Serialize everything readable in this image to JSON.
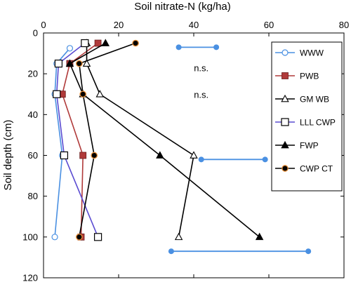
{
  "chart_data": {
    "type": "line",
    "orientation": "depth-profile",
    "xlabel": "Soil nitrate-N (kg/ha)",
    "ylabel": "Soil depth (cm)",
    "xlim": [
      0,
      80
    ],
    "ylim": [
      0,
      120
    ],
    "x_axis_position": "top",
    "y_axis_inverted": true,
    "x_ticks": [
      0,
      20,
      40,
      60,
      80
    ],
    "y_ticks": [
      0,
      20,
      40,
      60,
      80,
      100,
      120
    ],
    "grid": false,
    "legend_position": "top-right",
    "series": [
      {
        "name": "WWW",
        "color": "#4a90e2",
        "marker": "open-circle",
        "x": [
          7,
          3.5,
          3,
          5,
          3
        ],
        "depth": [
          7.5,
          15,
          30,
          60,
          100
        ]
      },
      {
        "name": "PWB",
        "color": "#b03a3a",
        "marker": "filled-square",
        "x": [
          14.5,
          7,
          5,
          10.5,
          10
        ],
        "depth": [
          5,
          15,
          30,
          60,
          100
        ]
      },
      {
        "name": "GM WB",
        "color": "#000000",
        "marker": "open-triangle",
        "x": [
          11.5,
          11.5,
          15,
          40,
          36
        ],
        "depth": [
          5,
          15,
          30,
          60,
          100
        ]
      },
      {
        "name": "LLL CWP",
        "color": "#5a4bd1",
        "marker": "open-square",
        "x": [
          11,
          4,
          3.5,
          5.5,
          14.5
        ],
        "depth": [
          5,
          15,
          30,
          60,
          100
        ]
      },
      {
        "name": "FWP",
        "color": "#000000",
        "marker": "filled-triangle",
        "x": [
          16.5,
          7,
          10.5,
          31,
          57.5
        ],
        "depth": [
          5,
          15,
          30,
          60,
          100
        ]
      },
      {
        "name": "CWP CT",
        "color": "#000000",
        "marker": "filled-circle-orange",
        "x": [
          24.5,
          9.5,
          10.5,
          13.5,
          9.5
        ],
        "depth": [
          5,
          15,
          30,
          60,
          100
        ]
      }
    ],
    "error_bars": [
      {
        "x1": 36,
        "x2": 46,
        "depth": 7
      },
      {
        "x1": 42,
        "x2": 59,
        "depth": 62
      },
      {
        "x1": 34,
        "x2": 70.5,
        "depth": 107
      }
    ],
    "annotations": [
      {
        "text": "n.s.",
        "x": 42,
        "depth": 17
      },
      {
        "text": "n.s.",
        "x": 42,
        "depth": 30
      }
    ]
  }
}
